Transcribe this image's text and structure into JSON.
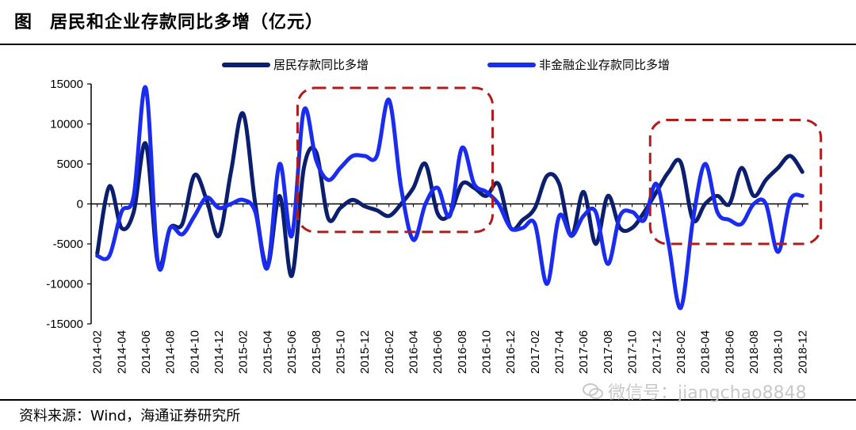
{
  "title": {
    "figure_label": "图",
    "text": "居民和企业存款同比多增（亿元）"
  },
  "source": "资料来源：Wind，海通证券研究所",
  "watermark": "微信号：jiangchao8848",
  "colors": {
    "series1": "#0b1f6e",
    "series2": "#1a2cf0",
    "highlight_box": "#b01b1b"
  },
  "chart_data": {
    "type": "line",
    "title": "居民和企业存款同比多增（亿元）",
    "ylim": [
      -15000,
      15000
    ],
    "yticks": [
      15000,
      10000,
      5000,
      0,
      -5000,
      -10000,
      -15000
    ],
    "x_tick_labels": [
      "2014-02",
      "2014-04",
      "2014-06",
      "2014-08",
      "2014-10",
      "2014-12",
      "2015-02",
      "2015-04",
      "2015-06",
      "2015-08",
      "2015-10",
      "2015-12",
      "2016-02",
      "2016-04",
      "2016-06",
      "2016-08",
      "2016-10",
      "2016-12",
      "2017-02",
      "2017-04",
      "2017-06",
      "2017-08",
      "2017-10",
      "2017-12",
      "2018-02",
      "2018-04",
      "2018-06",
      "2018-08",
      "2018-10",
      "2018-12"
    ],
    "x": [
      "2014-02",
      "2014-03",
      "2014-04",
      "2014-05",
      "2014-06",
      "2014-07",
      "2014-08",
      "2014-09",
      "2014-10",
      "2014-11",
      "2014-12",
      "2015-01",
      "2015-02",
      "2015-03",
      "2015-04",
      "2015-05",
      "2015-06",
      "2015-07",
      "2015-08",
      "2015-09",
      "2015-10",
      "2015-11",
      "2015-12",
      "2016-01",
      "2016-02",
      "2016-03",
      "2016-04",
      "2016-05",
      "2016-06",
      "2016-07",
      "2016-08",
      "2016-09",
      "2016-10",
      "2016-11",
      "2016-12",
      "2017-01",
      "2017-02",
      "2017-03",
      "2017-04",
      "2017-05",
      "2017-06",
      "2017-07",
      "2017-08",
      "2017-09",
      "2017-10",
      "2017-11",
      "2017-12",
      "2018-01",
      "2018-02",
      "2018-03",
      "2018-04",
      "2018-05",
      "2018-06",
      "2018-07",
      "2018-08",
      "2018-09",
      "2018-10",
      "2018-11",
      "2018-12"
    ],
    "series": [
      {
        "name": "居民存款同比多增",
        "values": [
          -6200,
          2200,
          -3000,
          -1000,
          7500,
          -7500,
          -3000,
          -2500,
          3600,
          500,
          -4000,
          4000,
          11300,
          0,
          -7800,
          1000,
          -9000,
          4500,
          6500,
          -1800,
          -500,
          500,
          -300,
          -800,
          -1500,
          0,
          2000,
          5000,
          -1200,
          -1300,
          2500,
          2000,
          1000,
          2500,
          -3000,
          -2000,
          -500,
          3500,
          2500,
          -4000,
          1500,
          -5000,
          1000,
          -3000,
          -3000,
          -1000,
          1500,
          4000,
          5200,
          -2000,
          0,
          1000,
          0,
          4500,
          1000,
          3000,
          4500,
          6000,
          4000
        ]
      },
      {
        "name": "非金融企业存款同比多增",
        "values": [
          -6500,
          -6500,
          -1000,
          1000,
          14500,
          -7500,
          -3000,
          -3800,
          -1500,
          800,
          -500,
          0,
          500,
          -1000,
          -8000,
          5000,
          -4000,
          11700,
          5500,
          3000,
          4500,
          6000,
          6000,
          6000,
          13000,
          2000,
          -4500,
          0,
          2000,
          -1500,
          7000,
          2500,
          1500,
          0,
          -3000,
          -3000,
          -2500,
          -10000,
          -1500,
          -4000,
          -1500,
          -1000,
          -7500,
          -1500,
          -1000,
          -2000,
          2500,
          -5000,
          -13000,
          -2000,
          5000,
          -1000,
          -2000,
          -2500,
          0,
          0,
          -6000,
          500,
          1000
        ]
      }
    ],
    "legend_position": "top",
    "annotations": [
      {
        "shape": "dashed-rounded-rectangle",
        "x_from": "2015-07",
        "x_to": "2016-10",
        "y_from": -3500,
        "y_to": 14500
      },
      {
        "shape": "dashed-rounded-rectangle",
        "x_from": "2017-12",
        "x_to": "2019-01",
        "y_from": -5000,
        "y_to": 10500
      }
    ]
  }
}
